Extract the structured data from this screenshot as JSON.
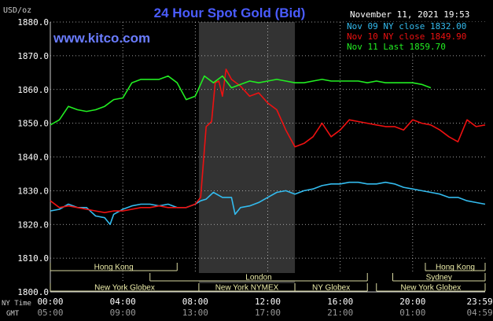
{
  "header": {
    "unit": "USD/oz",
    "title": "24 Hour Spot Gold (Bid)",
    "datetime": "November 11, 2021 19:53",
    "website": "www.kitco.com"
  },
  "colors": {
    "background": "#000000",
    "title": "#4a5cff",
    "website": "#6a7cff",
    "grid": "#cccccc",
    "shade": "#333333",
    "text": "#ffffff",
    "label_text": "#cccccc",
    "session_text": "#eeeeaa",
    "session_line": "#d8d8a0",
    "nov09": "#33bbee",
    "nov10": "#ee1111",
    "nov11": "#22ee22"
  },
  "chart_data": {
    "type": "line",
    "title": "24 Hour Spot Gold (Bid)",
    "ylabel": "USD/oz",
    "ylim": [
      1800,
      1880
    ],
    "xlim": [
      0,
      24
    ],
    "yticks": [
      "1800.0",
      "1810.0",
      "1820.0",
      "1830.0",
      "1840.0",
      "1850.0",
      "1860.0",
      "1870.0",
      "1880.0"
    ],
    "ny_time_label": "NY Time",
    "gmt_label": "GMT",
    "xticks_ny": [
      "00:00",
      "04:00",
      "08:00",
      "12:00",
      "16:00",
      "20:00",
      "23:59"
    ],
    "xticks_gmt": [
      "05:00",
      "09:00",
      "13:00",
      "17:00",
      "21:00",
      "01:00",
      "04:59"
    ],
    "xtick_hours": [
      0,
      4,
      8,
      12,
      16,
      20,
      23.983
    ],
    "shaded_region": [
      8.2,
      13.5
    ],
    "grid": true,
    "legend_position": "top-right",
    "legend": [
      {
        "label": "Nov 09 NY close 1832.00",
        "color": "#33bbee"
      },
      {
        "label": "Nov 10 NY close 1849.90",
        "color": "#ee1111"
      },
      {
        "label": "Nov 11 Last 1859.70",
        "color": "#22ee22"
      }
    ],
    "series": [
      {
        "name": "Nov 09",
        "color": "#33bbee",
        "x": [
          0,
          0.5,
          1,
          1.5,
          2,
          2.5,
          3,
          3.3,
          3.5,
          4,
          4.5,
          5,
          5.5,
          6,
          6.5,
          7,
          7.5,
          8,
          8.3,
          8.6,
          9,
          9.5,
          10,
          10.2,
          10.5,
          11,
          11.5,
          12,
          12.5,
          13,
          13.5,
          14,
          14.5,
          15,
          15.5,
          16,
          16.5,
          17,
          17.5,
          18,
          18.5,
          19,
          19.5,
          20,
          20.5,
          21,
          21.5,
          22,
          22.5,
          23,
          23.5,
          24
        ],
        "y": [
          1824,
          1824.5,
          1826,
          1825,
          1825,
          1822.5,
          1822,
          1820,
          1823,
          1824.5,
          1825.5,
          1826,
          1826,
          1825.5,
          1826,
          1825,
          1825,
          1826,
          1827,
          1827.5,
          1829.5,
          1828,
          1828,
          1823,
          1825,
          1825.5,
          1826.5,
          1828,
          1829.5,
          1830,
          1829,
          1830,
          1830.5,
          1831.5,
          1832,
          1832,
          1832.5,
          1832.5,
          1832,
          1832,
          1832.5,
          1832,
          1831,
          1830.5,
          1830,
          1829.5,
          1829,
          1828,
          1828,
          1827,
          1826.5,
          1826
        ]
      },
      {
        "name": "Nov 10",
        "color": "#ee1111",
        "x": [
          0,
          0.5,
          1,
          1.5,
          2,
          2.5,
          3,
          3.5,
          4,
          4.5,
          5,
          5.5,
          6,
          6.5,
          7,
          7.5,
          8,
          8.3,
          8.6,
          8.9,
          9.1,
          9.3,
          9.5,
          9.7,
          10,
          10.5,
          11,
          11.5,
          12,
          12.5,
          13,
          13.3,
          13.5,
          14,
          14.5,
          15,
          15.5,
          16,
          16.5,
          17,
          17.5,
          18,
          18.5,
          19,
          19.5,
          20,
          20.5,
          21,
          21.5,
          22,
          22.5,
          23,
          23.5,
          24
        ],
        "y": [
          1827,
          1825,
          1825.5,
          1825,
          1824.5,
          1824,
          1823.5,
          1824,
          1824,
          1824.5,
          1825,
          1825,
          1825.5,
          1825,
          1825,
          1825,
          1826,
          1828,
          1849,
          1850.5,
          1862,
          1862.5,
          1858,
          1866,
          1863,
          1861,
          1858,
          1859,
          1856,
          1854,
          1848,
          1845,
          1843,
          1844,
          1846,
          1850,
          1846,
          1848,
          1851,
          1850.5,
          1850,
          1849.5,
          1849,
          1849,
          1848,
          1851,
          1850,
          1849.5,
          1848,
          1846,
          1844.5,
          1851,
          1849,
          1849.5
        ]
      },
      {
        "name": "Nov 11",
        "color": "#22ee22",
        "x": [
          0,
          0.5,
          1,
          1.5,
          2,
          2.5,
          3,
          3.5,
          4,
          4.5,
          5,
          5.5,
          6,
          6.5,
          7,
          7.5,
          8,
          8.5,
          9,
          9.5,
          10,
          10.5,
          11,
          11.5,
          12,
          12.5,
          13,
          13.5,
          14,
          14.5,
          15,
          15.5,
          16,
          16.5,
          17,
          17.5,
          18,
          18.5,
          19,
          19.5,
          20,
          20.5,
          21
        ],
        "y": [
          1849.5,
          1851,
          1855,
          1854,
          1853.5,
          1854,
          1855,
          1857,
          1857.5,
          1862,
          1863,
          1863,
          1863,
          1864,
          1862,
          1857,
          1858,
          1864,
          1862,
          1864,
          1860.5,
          1861.5,
          1862.5,
          1862,
          1862.5,
          1863,
          1862.5,
          1862,
          1862,
          1862.5,
          1863,
          1862.5,
          1862.5,
          1862.5,
          1862.5,
          1862,
          1862.5,
          1862,
          1862,
          1862,
          1862,
          1861.5,
          1860.5
        ]
      }
    ],
    "sessions": [
      {
        "name": "Hong Kong",
        "row": 0,
        "start": 0,
        "end": 7
      },
      {
        "name": "Hong Kong",
        "row": 0,
        "start": 20.7,
        "end": 24
      },
      {
        "name": "London",
        "row": 1,
        "start": 5.5,
        "end": 17.5
      },
      {
        "name": "Sydney",
        "row": 1,
        "start": 18.9,
        "end": 24
      },
      {
        "name": "New York Globex",
        "row": 2,
        "start": 0,
        "end": 8.2
      },
      {
        "name": "New York NYMEX",
        "row": 2,
        "start": 8.2,
        "end": 13.5
      },
      {
        "name": "NY Globex",
        "row": 2,
        "start": 13.5,
        "end": 17.5
      },
      {
        "name": "New York Globex",
        "row": 2,
        "start": 18,
        "end": 24
      }
    ]
  }
}
